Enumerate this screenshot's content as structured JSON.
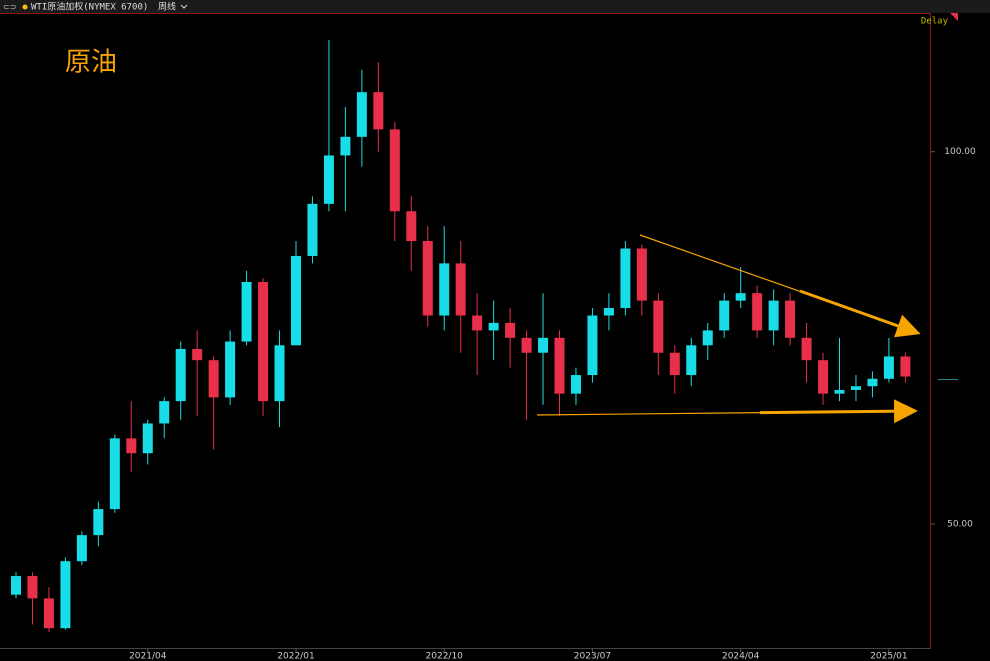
{
  "chart_data": {
    "type": "candlestick",
    "instrument": "WTI原油加权(NYMEX 6700)",
    "period": "周线",
    "status": "Delay",
    "title": "原油",
    "x": [
      "2020/08",
      "2020/09",
      "2020/10",
      "2020/11",
      "2020/12",
      "2021/01",
      "2021/02",
      "2021/03",
      "2021/04",
      "2021/05",
      "2021/06",
      "2021/07",
      "2021/08",
      "2021/09",
      "2021/10",
      "2021/11",
      "2021/12",
      "2022/01",
      "2022/02",
      "2022/03",
      "2022/04",
      "2022/05",
      "2022/06",
      "2022/07",
      "2022/08",
      "2022/09",
      "2022/10",
      "2022/11",
      "2022/12",
      "2023/01",
      "2023/02",
      "2023/03",
      "2023/04",
      "2023/05",
      "2023/06",
      "2023/07",
      "2023/08",
      "2023/09",
      "2023/10",
      "2023/11",
      "2023/12",
      "2024/01",
      "2024/02",
      "2024/03",
      "2024/04",
      "2024/05",
      "2024/06",
      "2024/07",
      "2024/08",
      "2024/09",
      "2024/10",
      "2024/11",
      "2024/12",
      "2025/01",
      "2025/02"
    ],
    "open": [
      40.5,
      43,
      40,
      36,
      45,
      48.5,
      52,
      61.5,
      59.5,
      63.5,
      66.5,
      73.5,
      72,
      67,
      74.5,
      82.5,
      66.5,
      74,
      86,
      93,
      99.5,
      102,
      108,
      103,
      92,
      88,
      78,
      85,
      78,
      76,
      77,
      75,
      73,
      75,
      67.5,
      70,
      78,
      79,
      87,
      80,
      73,
      70,
      74,
      76,
      80,
      81,
      76,
      80,
      75,
      72,
      67.5,
      68,
      68.5,
      69.5,
      72.5
    ],
    "high": [
      43.5,
      43.5,
      41.5,
      45.5,
      49,
      53,
      62,
      66.5,
      64,
      67,
      74.5,
      76,
      72.5,
      76,
      84,
      83,
      76,
      88,
      94,
      115,
      106,
      111,
      112,
      104,
      94,
      90,
      90,
      88,
      81,
      80,
      79,
      76,
      81,
      76,
      71,
      79,
      81,
      88,
      87.5,
      81,
      74,
      75,
      77,
      81,
      84.5,
      82,
      81.5,
      81,
      77,
      73,
      75,
      70,
      70.5,
      75,
      73
    ],
    "low": [
      40,
      36.5,
      35.5,
      35.8,
      44.5,
      47,
      51.5,
      57,
      58,
      61.5,
      64,
      64.5,
      60,
      66,
      74,
      64.5,
      63,
      74,
      85,
      92,
      92,
      98,
      100,
      88,
      84,
      76.5,
      76,
      73,
      70,
      72,
      71,
      64,
      66,
      64.5,
      66,
      69,
      76,
      78,
      78,
      70,
      67.5,
      68.5,
      72,
      75,
      79,
      75,
      74,
      74,
      69,
      66,
      66.5,
      66.5,
      67,
      69,
      69
    ],
    "close": [
      43,
      40,
      36,
      45,
      48.5,
      52,
      61.5,
      59.5,
      63.5,
      66.5,
      73.5,
      72,
      67,
      74.5,
      82.5,
      66.5,
      74,
      86,
      93,
      99.5,
      102,
      108,
      103,
      92,
      88,
      78,
      85,
      78,
      76,
      77,
      75,
      73,
      75,
      67.5,
      70,
      78,
      79,
      87,
      80,
      73,
      70,
      74,
      76,
      80,
      81,
      76,
      80,
      75,
      72,
      67.5,
      68,
      68.5,
      69.5,
      72.5,
      69.8
    ],
    "up_color": "#19dde6",
    "down_color": "#e8304a",
    "ylim": [
      32.8,
      118.5
    ],
    "yticks": [
      {
        "value": 100,
        "label": "100.00"
      },
      {
        "value": 50,
        "label": "50.00"
      }
    ],
    "xticks": [
      "2021/04",
      "2022/01",
      "2022/10",
      "2023/07",
      "2024/04",
      "2025/01"
    ]
  }
}
